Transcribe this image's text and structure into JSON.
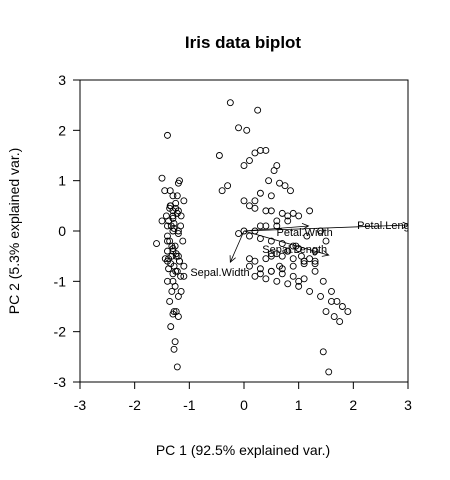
{
  "chart_data": {
    "type": "scatter",
    "title": "Iris data biplot",
    "xlabel": "PC 1 (92.5% explained var.)",
    "ylabel": "PC 2 (5.3% explained var.)",
    "xlim": [
      -3,
      3
    ],
    "ylim": [
      -3,
      3
    ],
    "xticks": [
      "-3",
      "-2",
      "-1",
      "0",
      "1",
      "2",
      "3"
    ],
    "yticks": [
      "-3",
      "-2",
      "-1",
      "0",
      "1",
      "2",
      "3"
    ],
    "grid": false,
    "series": [
      {
        "x": [
          -1.4,
          -1.2,
          -1.45,
          -1.18,
          -1.5,
          -1.1,
          -1.35,
          -1.25,
          -1.3,
          -1.22,
          -1.42,
          -1.15,
          -1.38,
          -1.28,
          -1.33,
          -1.2,
          -1.4,
          -1.12,
          -1.36,
          -1.26,
          -1.3,
          -1.24,
          -1.44,
          -1.18,
          -1.34,
          -1.28,
          -1.38,
          -1.22,
          -1.3,
          -1.16,
          -1.4,
          -1.26,
          -1.32,
          -1.2,
          -1.36,
          -1.24,
          -1.3,
          -1.2,
          -1.34,
          -1.26,
          -1.28,
          -1.22,
          -1.32,
          -1.18,
          -1.38,
          -1.24,
          -1.3,
          -1.16,
          -1.28,
          -1.2,
          -1.34,
          -1.36,
          -1.25,
          -1.3,
          -1.3,
          -1.6,
          -1.5,
          -1.4,
          -1.35,
          -1.3,
          -1.4,
          -1.25,
          -1.28,
          -1.15,
          -1.4,
          -1.3,
          -1.2,
          -1.1,
          -1.4,
          -1.3,
          -1.32,
          -1.2,
          -1.22,
          -1.1,
          -0.25,
          0.25,
          -0.45,
          -0.1,
          0.05,
          0.1,
          0.0,
          0.3,
          0.2,
          0.4,
          0.6,
          0.55,
          0.45,
          0.65,
          0.75,
          0.85,
          0.5,
          0.3,
          0.2,
          0.0,
          0.1,
          0.2,
          0.4,
          0.5,
          0.7,
          0.9,
          0.8,
          0.6,
          0.4,
          0.3,
          0.2,
          0.0,
          -0.1,
          0.1,
          0.3,
          0.5,
          0.7,
          0.9,
          1.0,
          0.8,
          0.6,
          0.5,
          0.4,
          0.2,
          0.1,
          0.1,
          0.3,
          0.5,
          0.7,
          0.9,
          1.1,
          1.0,
          1.05,
          1.2,
          1.3,
          1.1,
          0.9,
          0.7,
          0.5,
          0.3,
          0.2,
          0.4,
          0.6,
          0.8,
          1.0,
          1.2,
          1.4,
          1.6,
          1.8,
          1.5,
          1.3,
          1.1,
          0.9,
          0.7,
          0.5,
          0.6,
          0.8,
          1.0,
          1.2,
          1.4,
          1.5,
          1.3,
          1.1,
          1.3,
          1.45,
          1.6,
          1.7,
          1.9,
          1.75,
          1.55,
          1.45,
          1.65,
          0.65,
          0.8,
          0.95,
          1.15,
          -0.4,
          -0.3
        ],
        "y": [
          1.9,
          0.95,
          0.8,
          1.0,
          1.05,
          0.6,
          0.5,
          0.45,
          0.4,
          0.35,
          0.3,
          0.3,
          0.2,
          0.15,
          0.1,
          0.0,
          -0.1,
          -0.2,
          -0.2,
          -0.3,
          -0.4,
          -0.5,
          -0.55,
          -0.6,
          -0.65,
          -0.7,
          -0.75,
          -0.8,
          -0.85,
          -0.9,
          -1.0,
          -1.1,
          -1.2,
          -1.3,
          -1.4,
          -1.6,
          -1.65,
          -1.7,
          -1.9,
          -2.2,
          -2.35,
          -2.7,
          -0.5,
          -0.6,
          -0.55,
          -0.45,
          -0.35,
          0.1,
          0.05,
          -0.05,
          0.5,
          0.45,
          0.55,
          0.25,
          -1.0,
          -0.25,
          0.2,
          -0.4,
          0.8,
          0.7,
          -0.6,
          -0.8,
          -1.6,
          -1.2,
          -0.2,
          0.0,
          0.4,
          -0.7,
          0.1,
          0.3,
          -0.3,
          -0.5,
          0.7,
          -0.9,
          2.55,
          2.4,
          1.5,
          2.05,
          2.0,
          1.4,
          1.3,
          1.6,
          1.55,
          1.6,
          1.3,
          1.2,
          1.0,
          0.95,
          0.9,
          0.8,
          0.7,
          0.75,
          0.6,
          0.6,
          0.5,
          0.45,
          0.4,
          0.4,
          0.35,
          0.35,
          0.3,
          0.2,
          0.1,
          0.1,
          0.0,
          0.0,
          -0.05,
          -0.1,
          -0.15,
          -0.2,
          -0.25,
          -0.3,
          -0.35,
          -0.4,
          -0.45,
          -0.5,
          -0.55,
          -0.6,
          -0.55,
          -0.7,
          -0.75,
          -0.8,
          -0.85,
          -0.9,
          -0.95,
          -1.0,
          -0.5,
          -0.55,
          -0.6,
          -0.65,
          -0.7,
          -0.75,
          -0.8,
          -0.85,
          -0.9,
          -0.95,
          -1.0,
          -1.05,
          -1.1,
          -1.2,
          -1.3,
          -1.4,
          -1.5,
          -1.6,
          -0.65,
          -0.6,
          -0.55,
          -0.5,
          -0.45,
          0.1,
          0.2,
          0.3,
          0.4,
          0.0,
          -0.2,
          -0.4,
          -0.6,
          -0.8,
          -1.0,
          -1.2,
          -1.4,
          -1.6,
          -1.8,
          -2.8,
          -2.4,
          -1.7,
          -0.7,
          -0.4,
          -0.3,
          -0.1,
          0.8,
          0.9
        ]
      }
    ],
    "loadings": [
      {
        "name": "Petal.Length",
        "x": 3.02,
        "y": 0.12
      },
      {
        "name": "Petal.Width",
        "x": 1.18,
        "y": 0.1
      },
      {
        "name": "Sepal.Length",
        "x": 1.55,
        "y": -0.48
      },
      {
        "name": "Sepal.Width",
        "x": -0.25,
        "y": -0.62
      }
    ]
  }
}
